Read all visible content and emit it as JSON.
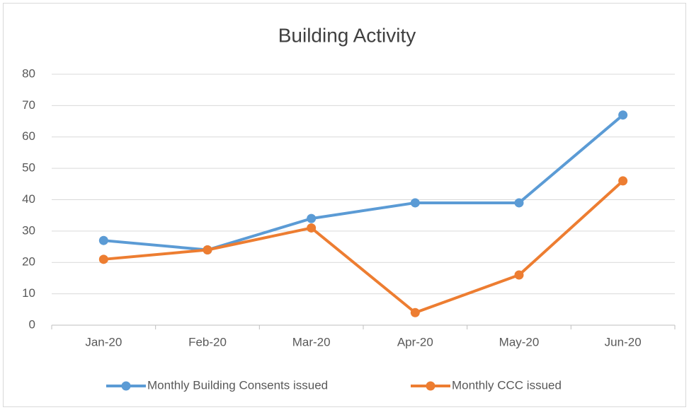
{
  "chart_data": {
    "type": "line",
    "title": "Building Activity",
    "categories": [
      "Jan-20",
      "Feb-20",
      "Mar-20",
      "Apr-20",
      "May-20",
      "Jun-20"
    ],
    "series": [
      {
        "name": "Monthly Building Consents issued",
        "color": "#5b9bd5",
        "values": [
          27,
          24,
          34,
          39,
          39,
          67
        ]
      },
      {
        "name": "Monthly CCC issued",
        "color": "#ed7d31",
        "values": [
          21,
          24,
          31,
          4,
          16,
          46
        ]
      }
    ],
    "ylim": [
      0,
      80
    ],
    "yticks": [
      0,
      10,
      20,
      30,
      40,
      50,
      60,
      70,
      80
    ],
    "grid": true,
    "legend": "bottom"
  }
}
